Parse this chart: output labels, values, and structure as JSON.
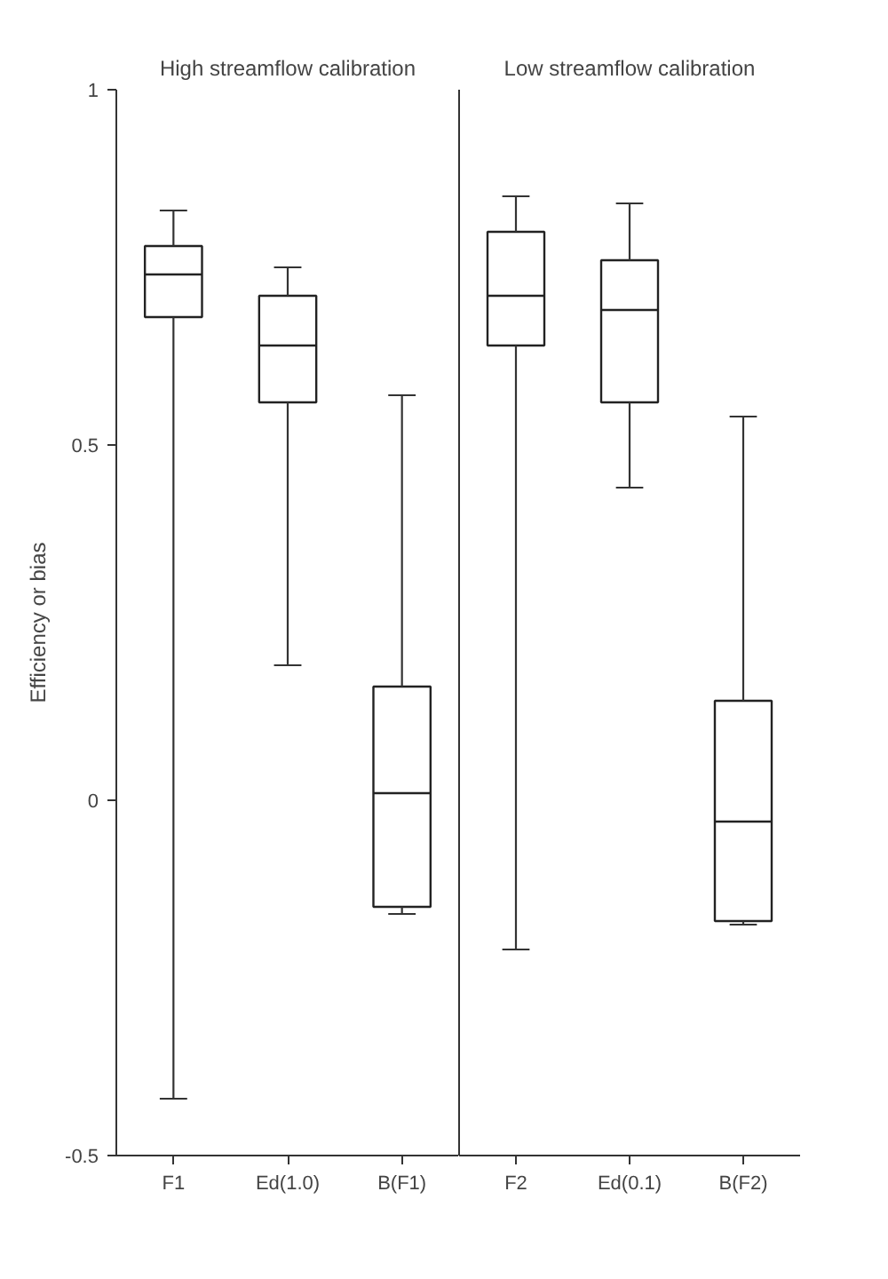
{
  "chart_data": [
    {
      "type": "box",
      "title": "High streamflow calibration",
      "ylabel": "Efficiency or bias",
      "categories": [
        "F1",
        "Ed(1.0)",
        "B(F1)"
      ],
      "ylim": [
        -0.5,
        1
      ],
      "yticks": [
        -0.5,
        0,
        0.5,
        1
      ],
      "boxes": [
        {
          "low": -0.42,
          "q1": 0.68,
          "median": 0.74,
          "q3": 0.78,
          "high": 0.83
        },
        {
          "low": 0.19,
          "q1": 0.56,
          "median": 0.64,
          "q3": 0.71,
          "high": 0.75
        },
        {
          "low": -0.16,
          "q1": -0.15,
          "median": 0.01,
          "q3": 0.16,
          "high": 0.57
        }
      ]
    },
    {
      "type": "box",
      "title": "Low streamflow calibration",
      "categories": [
        "F2",
        "Ed(0.1)",
        "B(F2)"
      ],
      "ylim": [
        -0.5,
        1
      ],
      "tick_labels": "x",
      "boxes": [
        {
          "low": -0.21,
          "q1": 0.64,
          "median": 0.71,
          "q3": 0.8,
          "high": 0.85
        },
        {
          "low": 0.44,
          "q1": 0.56,
          "median": 0.69,
          "q3": 0.76,
          "high": 0.84
        },
        {
          "low": -0.175,
          "q1": -0.17,
          "median": -0.03,
          "q3": 0.14,
          "high": 0.54
        }
      ]
    }
  ]
}
